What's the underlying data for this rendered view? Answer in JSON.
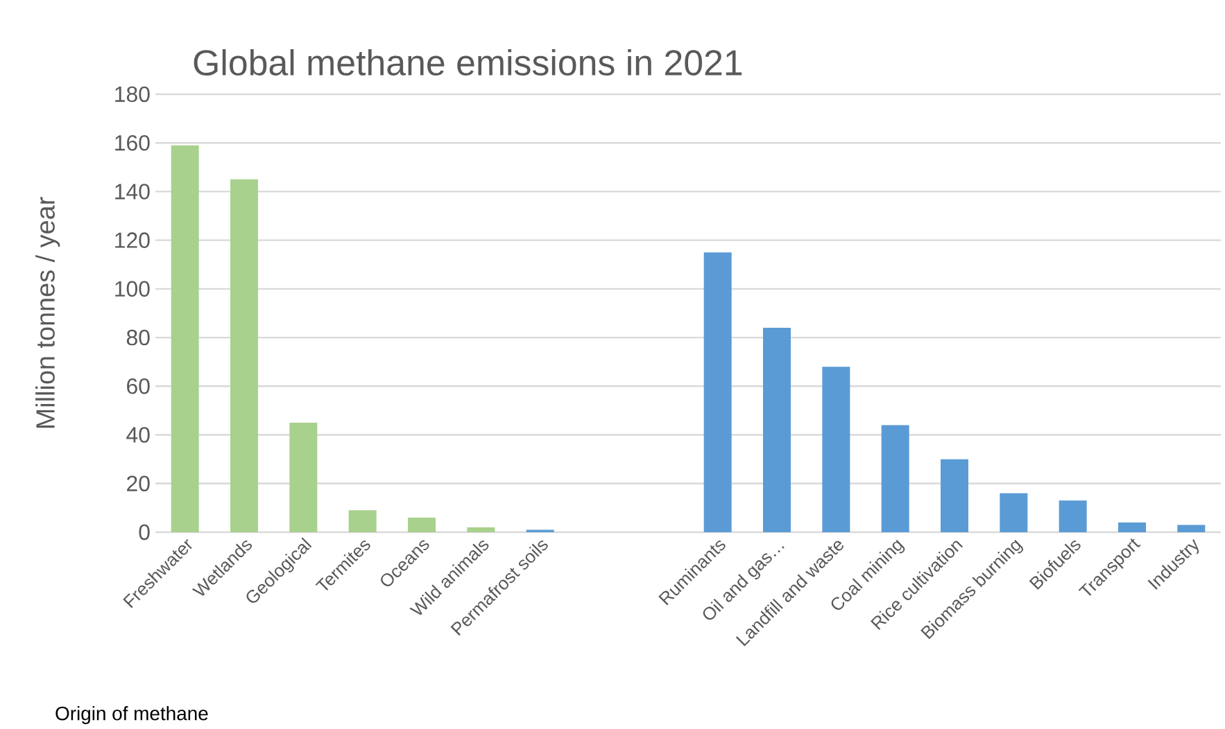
{
  "chart_data": {
    "type": "bar",
    "title": "Global methane emissions in 2021",
    "xlabel": "Origin of methane",
    "ylabel": "Million tonnes / year",
    "categories": [
      "Freshwater",
      "Wetlands",
      "Geological",
      "Termites",
      "Oceans",
      "Wild animals",
      "Permafrost soils",
      null,
      null,
      "Ruminants",
      "Oil and gas…",
      "Landfill and waste",
      "Coal mining",
      "Rice cultivation",
      "Biomass burning",
      "Biofuels",
      "Transport",
      "Industry"
    ],
    "values": [
      159,
      145,
      45,
      9,
      6,
      2,
      1,
      null,
      null,
      115,
      84,
      68,
      44,
      30,
      16,
      13,
      4,
      3
    ],
    "colors": [
      "#a9d18e",
      "#a9d18e",
      "#a9d18e",
      "#a9d18e",
      "#a9d18e",
      "#a9d18e",
      "#5b9bd5",
      null,
      null,
      "#5b9bd5",
      "#5b9bd5",
      "#5b9bd5",
      "#5b9bd5",
      "#5b9bd5",
      "#5b9bd5",
      "#5b9bd5",
      "#5b9bd5",
      "#5b9bd5"
    ],
    "ylim": [
      0,
      180
    ],
    "yticks": [
      0,
      20,
      40,
      60,
      80,
      100,
      120,
      140,
      160,
      180
    ],
    "grid": "y"
  }
}
